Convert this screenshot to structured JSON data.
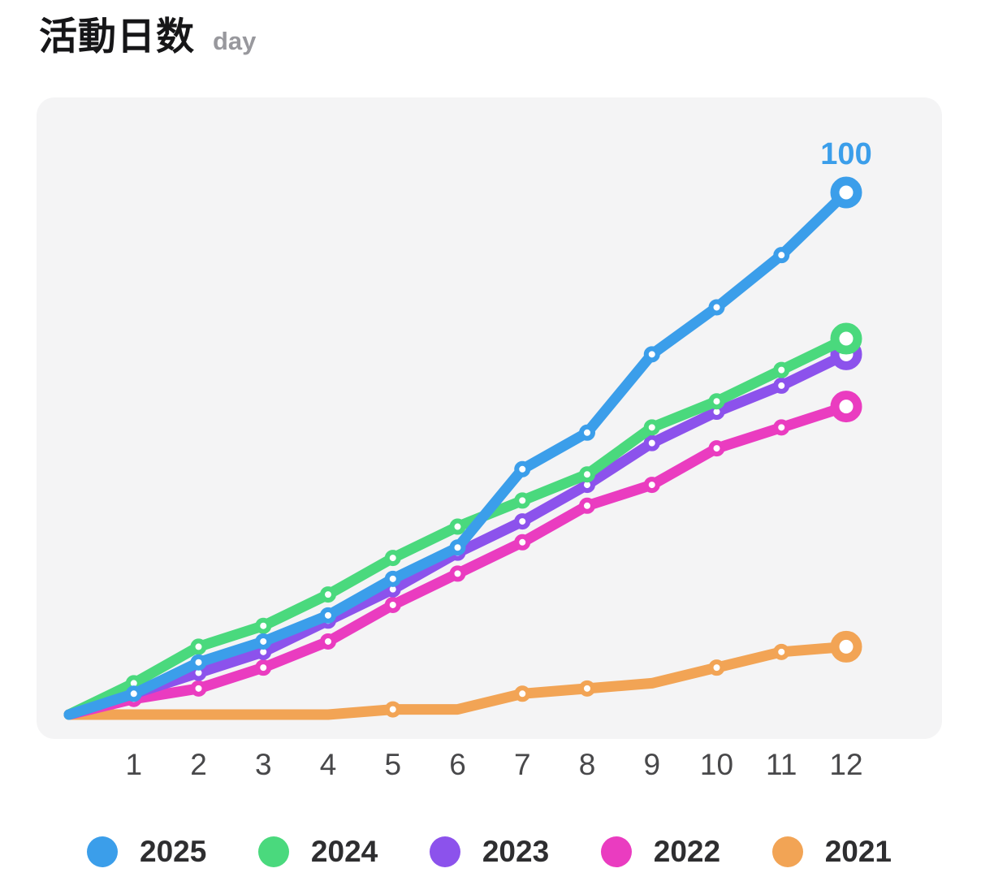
{
  "header": {
    "title": "活動日数",
    "unit": "day"
  },
  "chart_data": {
    "type": "line",
    "title": "活動日数",
    "ylabel_unit": "day",
    "x": [
      1,
      2,
      3,
      4,
      5,
      6,
      7,
      8,
      9,
      10,
      11,
      12
    ],
    "x_tick_labels": [
      "1",
      "2",
      "3",
      "4",
      "5",
      "6",
      "7",
      "8",
      "9",
      "10",
      "11",
      "12"
    ],
    "ylim": [
      0,
      100
    ],
    "grid": false,
    "lines_start_at_origin_zero": true,
    "legend_position": "bottom",
    "panel_bg": "#f4f4f5",
    "x_label_color": "#48484a",
    "point_label": {
      "series": "2025",
      "month": 12,
      "text": "100"
    },
    "series": [
      {
        "name": "2025",
        "color": "#3B9EEA",
        "values": [
          4,
          10,
          14,
          19,
          26,
          32,
          47,
          54,
          69,
          78,
          88,
          100
        ],
        "marker_months": [
          1,
          2,
          3,
          4,
          5,
          6,
          7,
          8,
          9,
          10,
          11,
          12
        ]
      },
      {
        "name": "2024",
        "color": "#4AD97D",
        "values": [
          6,
          13,
          17,
          23,
          30,
          36,
          41,
          46,
          55,
          60,
          66,
          72
        ],
        "marker_months": [
          1,
          2,
          3,
          4,
          5,
          6,
          7,
          8,
          9,
          10,
          11,
          12
        ]
      },
      {
        "name": "2023",
        "color": "#8C52EC",
        "values": [
          4,
          8,
          12,
          18,
          24,
          31,
          37,
          44,
          52,
          58,
          63,
          69
        ],
        "marker_months": [
          1,
          2,
          3,
          4,
          5,
          6,
          7,
          8,
          9,
          10,
          11,
          12
        ]
      },
      {
        "name": "2022",
        "color": "#EA3CC0",
        "values": [
          3,
          5,
          9,
          14,
          21,
          27,
          33,
          40,
          44,
          51,
          55,
          59
        ],
        "marker_months": [
          1,
          2,
          3,
          4,
          5,
          6,
          7,
          8,
          9,
          10,
          11,
          12
        ]
      },
      {
        "name": "2021",
        "color": "#F2A455",
        "values": [
          0,
          0,
          0,
          0,
          1,
          1,
          4,
          5,
          6,
          9,
          12,
          13
        ],
        "marker_months": [
          5,
          7,
          8,
          10,
          11,
          12
        ]
      }
    ]
  }
}
